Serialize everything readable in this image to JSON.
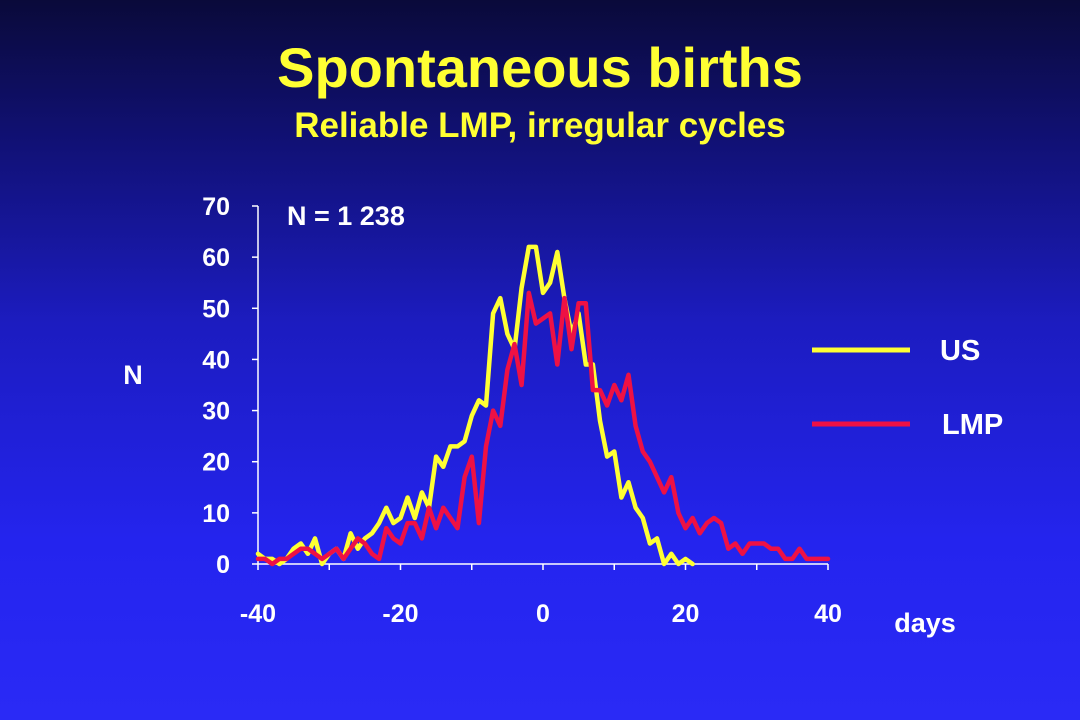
{
  "slide": {
    "title": "Spontaneous births",
    "subtitle": "Reliable LMP, irregular cycles"
  },
  "chart_data": {
    "type": "line",
    "annotation": "N = 1 238",
    "ylabel": "N",
    "xlabel": "days",
    "xlim": [
      -40,
      40
    ],
    "ylim": [
      0,
      70
    ],
    "xticks": [
      "-40",
      "-20",
      "0",
      "20",
      "40"
    ],
    "yticks": [
      "0",
      "10",
      "20",
      "30",
      "40",
      "50",
      "60",
      "70"
    ],
    "grid": false,
    "legend_position": "right",
    "series": [
      {
        "name": "US",
        "color": "#ffff33",
        "x": [
          -40,
          -39,
          -38,
          -37,
          -36,
          -35,
          -34,
          -33,
          -32,
          -31,
          -30,
          -29,
          -28,
          -27,
          -26,
          -25,
          -24,
          -23,
          -22,
          -21,
          -20,
          -19,
          -18,
          -17,
          -16,
          -15,
          -14,
          -13,
          -12,
          -11,
          -10,
          -9,
          -8,
          -7,
          -6,
          -5,
          -4,
          -3,
          -2,
          -1,
          0,
          1,
          2,
          3,
          4,
          5,
          6,
          7,
          8,
          9,
          10,
          11,
          12,
          13,
          14,
          15,
          16,
          17,
          18,
          19,
          20,
          21
        ],
        "y": [
          2,
          1,
          1,
          0,
          1,
          3,
          4,
          2,
          5,
          0,
          2,
          3,
          1,
          6,
          3,
          5,
          6,
          8,
          11,
          8,
          9,
          13,
          9,
          14,
          11,
          21,
          19,
          23,
          23,
          24,
          29,
          32,
          31,
          49,
          52,
          45,
          42,
          54,
          62,
          62,
          53,
          55,
          61,
          52,
          45,
          49,
          39,
          39,
          28,
          21,
          22,
          13,
          16,
          11,
          9,
          4,
          5,
          0,
          2,
          0,
          1,
          0
        ]
      },
      {
        "name": "LMP",
        "color": "#ee1144",
        "x": [
          -40,
          -39,
          -38,
          -37,
          -36,
          -35,
          -34,
          -33,
          -32,
          -31,
          -30,
          -29,
          -28,
          -27,
          -26,
          -25,
          -24,
          -23,
          -22,
          -21,
          -20,
          -19,
          -18,
          -17,
          -16,
          -15,
          -14,
          -13,
          -12,
          -11,
          -10,
          -9,
          -8,
          -7,
          -6,
          -5,
          -4,
          -3,
          -2,
          -1,
          0,
          1,
          2,
          3,
          4,
          5,
          6,
          7,
          8,
          9,
          10,
          11,
          12,
          13,
          14,
          15,
          16,
          17,
          18,
          19,
          20,
          21,
          22,
          23,
          24,
          25,
          26,
          27,
          28,
          29,
          30,
          31,
          32,
          33,
          34,
          35,
          36,
          37,
          38,
          39,
          40
        ],
        "y": [
          1,
          1,
          0,
          1,
          1,
          2,
          3,
          3,
          2,
          1,
          2,
          3,
          1,
          3,
          5,
          4,
          2,
          1,
          7,
          5,
          4,
          8,
          8,
          5,
          11,
          7,
          11,
          9,
          7,
          17,
          21,
          8,
          23,
          30,
          27,
          38,
          43,
          35,
          53,
          47,
          48,
          49,
          39,
          52,
          42,
          51,
          51,
          34,
          34,
          31,
          35,
          32,
          37,
          27,
          22,
          20,
          17,
          14,
          17,
          10,
          7,
          9,
          6,
          8,
          9,
          8,
          3,
          4,
          2,
          4,
          4,
          4,
          3,
          3,
          1,
          1,
          3,
          1,
          1,
          1,
          1
        ]
      }
    ]
  }
}
